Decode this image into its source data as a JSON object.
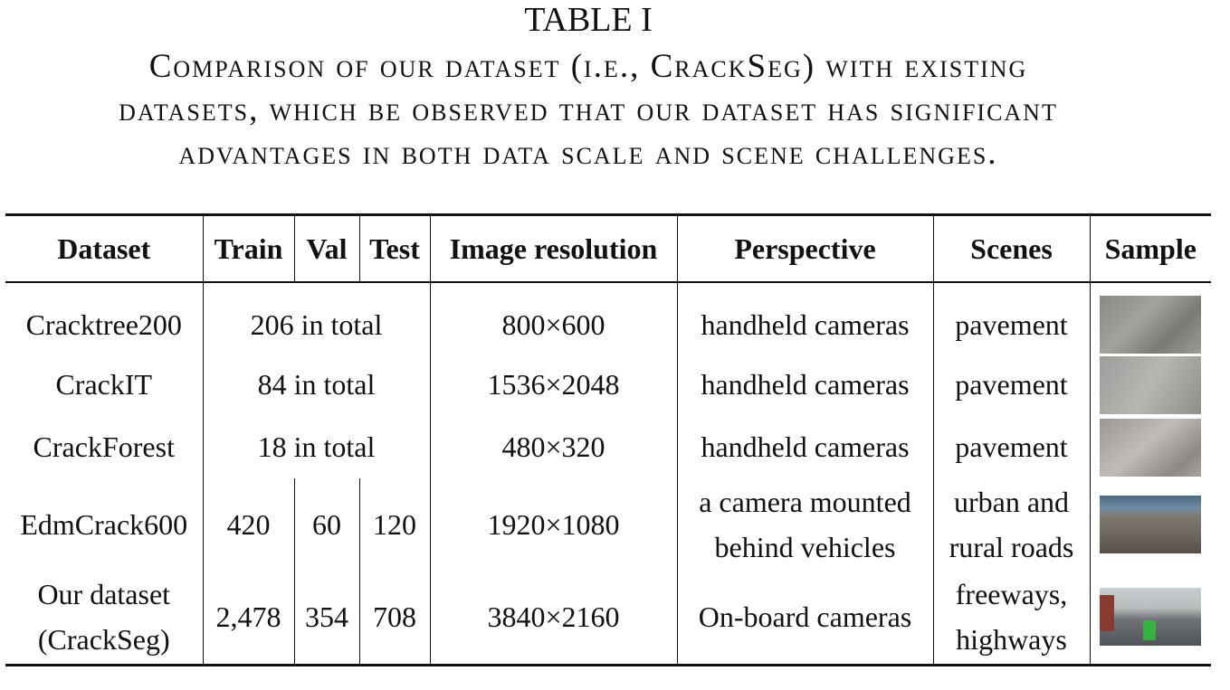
{
  "caption": {
    "title": "TABLE I",
    "lines": [
      "Comparison of our dataset (i.e., CrackSeg) with existing",
      "datasets, which be observed that our dataset has significant",
      "advantages in both data scale and scene challenges."
    ]
  },
  "table": {
    "headers": [
      "Dataset",
      "Train",
      "Val",
      "Test",
      "Image resolution",
      "Perspective",
      "Scenes",
      "Sample"
    ],
    "rows": [
      {
        "dataset": [
          "Cracktree200"
        ],
        "total": "206 in total",
        "resolution": "800×600",
        "perspective": [
          "handheld cameras"
        ],
        "scenes": [
          "pavement"
        ],
        "sample_icon": "crack-pavement-image"
      },
      {
        "dataset": [
          "CrackIT"
        ],
        "total": "84 in total",
        "resolution": "1536×2048",
        "perspective": [
          "handheld cameras"
        ],
        "scenes": [
          "pavement"
        ],
        "sample_icon": "crack-pavement-image"
      },
      {
        "dataset": [
          "CrackForest"
        ],
        "total": "18 in total",
        "resolution": "480×320",
        "perspective": [
          "handheld cameras"
        ],
        "scenes": [
          "pavement"
        ],
        "sample_icon": "crack-pavement-image"
      },
      {
        "dataset": [
          "EdmCrack600"
        ],
        "train": "420",
        "val": "60",
        "test": "120",
        "resolution": "1920×1080",
        "perspective": [
          "a camera mounted",
          "behind vehicles"
        ],
        "scenes": [
          "urban and",
          "rural roads"
        ],
        "sample_icon": "road-image"
      },
      {
        "dataset": [
          "Our dataset",
          "(CrackSeg)"
        ],
        "train": "2,478",
        "val": "354",
        "test": "708",
        "resolution": "3840×2160",
        "perspective": [
          "On-board cameras"
        ],
        "scenes": [
          "freeways,",
          "highways"
        ],
        "sample_icon": "highway-image"
      }
    ]
  }
}
